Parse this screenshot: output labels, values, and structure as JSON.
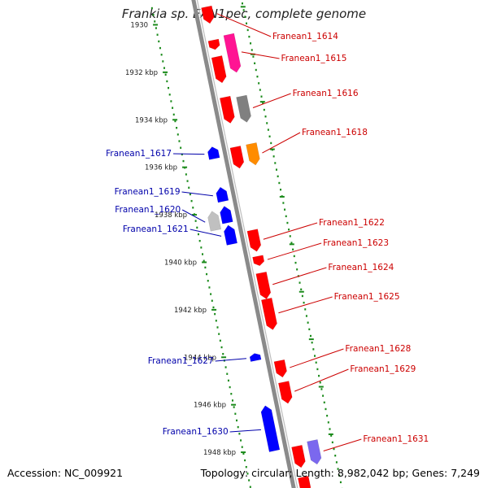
{
  "title": "Frankia sp. EAN1pec, complete genome",
  "footer": {
    "accession": "Accession: NC_009921",
    "topology": "Topology: circular; Length: 8,982,042 bp; Genes: 7,249"
  },
  "colors": {
    "backbone": "#8a8a8a",
    "tick_marks": "#1a8a1a",
    "forward_label": "#cc0000",
    "reverse_label": "#0000aa",
    "cds_forward": "#ff0000",
    "cds_reverse": "#0000ff",
    "other_pink": "#ff1493",
    "other_gray": "#808080",
    "other_orange": "#ff8c00",
    "other_lightgray": "#c0c0c0",
    "other_purple": "#7b68ee"
  },
  "axis": {
    "unit": "kbp",
    "ticks": [
      {
        "label": "1930",
        "kbp": 1930
      },
      {
        "label": "1932 kbp",
        "kbp": 1932
      },
      {
        "label": "1934 kbp",
        "kbp": 1934
      },
      {
        "label": "1936 kbp",
        "kbp": 1936
      },
      {
        "label": "1938 kbp",
        "kbp": 1938
      },
      {
        "label": "1940 kbp",
        "kbp": 1940
      },
      {
        "label": "1942 kbp",
        "kbp": 1942
      },
      {
        "label": "1944 kbp",
        "kbp": 1944
      },
      {
        "label": "1946 kbp",
        "kbp": 1946
      },
      {
        "label": "1948 kbp",
        "kbp": 1948
      }
    ]
  },
  "features": [
    {
      "id": "f1",
      "strand": 1,
      "start": 1929.7,
      "end": 1930.4,
      "color": "cds_forward"
    },
    {
      "id": "f2",
      "strand": 1,
      "start": 1931.1,
      "end": 1931.5,
      "color": "cds_forward"
    },
    {
      "id": "f3",
      "strand": 1,
      "start": 1931.8,
      "end": 1932.9,
      "color": "cds_forward"
    },
    {
      "id": "f4",
      "strand": 2,
      "start": 1931.0,
      "end": 1932.6,
      "color": "other_pink"
    },
    {
      "id": "f5",
      "strand": 1,
      "start": 1933.5,
      "end": 1934.6,
      "color": "cds_forward"
    },
    {
      "id": "f6",
      "strand": 2,
      "start": 1933.6,
      "end": 1934.7,
      "color": "other_gray"
    },
    {
      "id": "f7",
      "strand": 1,
      "start": 1935.6,
      "end": 1936.5,
      "color": "cds_forward"
    },
    {
      "id": "f8",
      "strand": 2,
      "start": 1935.6,
      "end": 1936.5,
      "color": "other_orange"
    },
    {
      "id": "f9",
      "strand": -1,
      "start": 1935.4,
      "end": 1935.9,
      "color": "cds_reverse"
    },
    {
      "id": "f10",
      "strand": -1,
      "start": 1937.1,
      "end": 1937.7,
      "color": "cds_reverse"
    },
    {
      "id": "f11",
      "strand": -2,
      "start": 1938.0,
      "end": 1938.8,
      "color": "other_lightgray"
    },
    {
      "id": "f12",
      "strand": -1,
      "start": 1937.9,
      "end": 1938.6,
      "color": "cds_reverse"
    },
    {
      "id": "f13",
      "strand": -1,
      "start": 1938.7,
      "end": 1939.5,
      "color": "cds_reverse"
    },
    {
      "id": "f14",
      "strand": 1,
      "start": 1939.1,
      "end": 1940.0,
      "color": "cds_forward"
    },
    {
      "id": "f15",
      "strand": 1,
      "start": 1940.2,
      "end": 1940.6,
      "color": "cds_forward"
    },
    {
      "id": "f16",
      "strand": 1,
      "start": 1940.9,
      "end": 1942.0,
      "color": "cds_forward"
    },
    {
      "id": "f17",
      "strand": 1,
      "start": 1942.0,
      "end": 1943.3,
      "color": "cds_forward"
    },
    {
      "id": "f18",
      "strand": -1,
      "start": 1944.1,
      "end": 1944.4,
      "color": "cds_reverse"
    },
    {
      "id": "f19",
      "strand": 1,
      "start": 1944.6,
      "end": 1945.3,
      "color": "cds_forward"
    },
    {
      "id": "f20",
      "strand": 1,
      "start": 1945.5,
      "end": 1946.4,
      "color": "cds_forward"
    },
    {
      "id": "f21",
      "strand": -1,
      "start": 1946.3,
      "end": 1948.2,
      "color": "cds_reverse"
    },
    {
      "id": "f22",
      "strand": 1,
      "start": 1948.2,
      "end": 1949.1,
      "color": "cds_forward"
    },
    {
      "id": "f23",
      "strand": 2,
      "start": 1948.1,
      "end": 1949.1,
      "color": "other_purple"
    },
    {
      "id": "f24",
      "strand": 1,
      "start": 1949.5,
      "end": 1950.2,
      "color": "cds_forward"
    }
  ],
  "gene_labels": [
    {
      "text": "Franean1_1614",
      "side": "right",
      "feature": "f1"
    },
    {
      "text": "Franean1_1615",
      "side": "right",
      "feature": "f4"
    },
    {
      "text": "Franean1_1616",
      "side": "right",
      "feature": "f6"
    },
    {
      "text": "Franean1_1618",
      "side": "right",
      "feature": "f8"
    },
    {
      "text": "Franean1_1617",
      "side": "left",
      "feature": "f9"
    },
    {
      "text": "Franean1_1619",
      "side": "left",
      "feature": "f10"
    },
    {
      "text": "Franean1_1620",
      "side": "left",
      "feature": "f11"
    },
    {
      "text": "Franean1_1621",
      "side": "left",
      "feature": "f13"
    },
    {
      "text": "Franean1_1622",
      "side": "right",
      "feature": "f14"
    },
    {
      "text": "Franean1_1623",
      "side": "right",
      "feature": "f15"
    },
    {
      "text": "Franean1_1624",
      "side": "right",
      "feature": "f16"
    },
    {
      "text": "Franean1_1625",
      "side": "right",
      "feature": "f17"
    },
    {
      "text": "Franean1_1627",
      "side": "left",
      "feature": "f18"
    },
    {
      "text": "Franean1_1628",
      "side": "right",
      "feature": "f19"
    },
    {
      "text": "Franean1_1629",
      "side": "right",
      "feature": "f20"
    },
    {
      "text": "Franean1_1630",
      "side": "left",
      "feature": "f21"
    },
    {
      "text": "Franean1_1631",
      "side": "right",
      "feature": "f23"
    }
  ]
}
